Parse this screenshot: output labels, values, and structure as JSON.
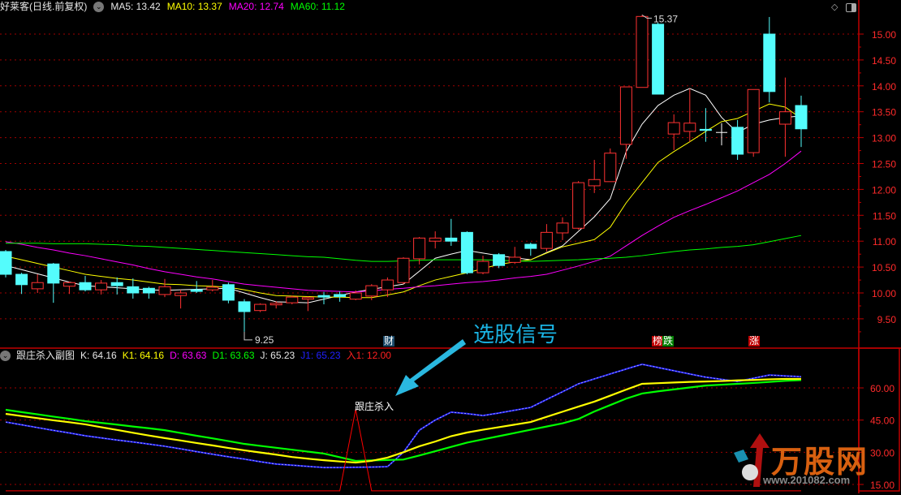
{
  "header": {
    "stock": "好莱客(日线.前复权)",
    "ma5": "MA5: 13.42",
    "ma10": "MA10: 13.37",
    "ma20": "MA20: 12.74",
    "ma60": "MA60: 11.12"
  },
  "indicator": {
    "name": "跟庄杀入副图",
    "k": "K: 64.16",
    "k1": "K1: 64.16",
    "d": "D: 63.63",
    "d1": "D1: 63.63",
    "j": "J: 65.23",
    "j1": "J1: 65.23",
    "in1": "入1: 12.00"
  },
  "annotations": {
    "signal": "选股信号",
    "kill": "跟庄杀入",
    "low": "9.25",
    "high": "15.37",
    "markers": [
      {
        "text": "财",
        "bg": "#1a4a6a"
      },
      {
        "text": "榜",
        "bg": "#c00000"
      },
      {
        "text": "跌",
        "bg": "#008000"
      },
      {
        "text": "涨",
        "bg": "#c00000"
      }
    ]
  },
  "logo": {
    "name": "万股网",
    "url": "www.201082.com"
  },
  "icons": {
    "top_right": [
      "diamond-icon",
      "panel-toggle-icon"
    ],
    "legend": "chevron-down-icon"
  },
  "colors": {
    "up": "#ff3232",
    "down": "#54fcfc",
    "ma5": "#ffffff",
    "ma10": "#ffff00",
    "ma20": "#ff00ff",
    "ma60": "#00ff00",
    "grid": "#a00000",
    "axis": "#c00000"
  },
  "chart_data": [
    {
      "type": "candlestick",
      "ylim": [
        9.5,
        15.0
      ],
      "yticks": [
        "15.00",
        "14.50",
        "14.00",
        "13.50",
        "13.00",
        "12.50",
        "12.00",
        "11.50",
        "11.00",
        "10.50",
        "10.00",
        "9.50"
      ],
      "grid": true,
      "candles": [
        [
          10.8,
          10.83,
          10.3,
          10.36
        ],
        [
          10.36,
          10.39,
          9.98,
          10.16
        ],
        [
          10.08,
          10.36,
          10.0,
          10.2
        ],
        [
          10.56,
          10.58,
          9.81,
          10.19
        ],
        [
          10.13,
          10.22,
          9.98,
          10.2
        ],
        [
          10.2,
          10.33,
          10.03,
          10.06
        ],
        [
          10.06,
          10.25,
          9.97,
          10.19
        ],
        [
          10.2,
          10.3,
          9.97,
          10.14
        ],
        [
          10.12,
          10.28,
          9.89,
          10.0
        ],
        [
          10.09,
          10.12,
          9.89,
          10.0
        ],
        [
          9.97,
          10.27,
          9.92,
          10.12
        ],
        [
          9.95,
          10.06,
          9.7,
          10.0
        ],
        [
          10.06,
          10.23,
          10.0,
          10.03
        ],
        [
          10.06,
          10.25,
          10.03,
          10.11
        ],
        [
          10.16,
          10.2,
          9.8,
          9.86
        ],
        [
          9.83,
          9.88,
          9.25,
          9.64
        ],
        [
          9.66,
          9.8,
          9.63,
          9.78
        ],
        [
          9.77,
          9.84,
          9.7,
          9.8
        ],
        [
          9.81,
          9.95,
          9.78,
          9.92
        ],
        [
          9.88,
          9.93,
          9.65,
          9.91
        ],
        [
          9.95,
          10.02,
          9.78,
          9.92
        ],
        [
          9.97,
          10.03,
          9.83,
          9.93
        ],
        [
          9.88,
          10.05,
          9.86,
          10.0
        ],
        [
          9.94,
          10.17,
          9.86,
          10.14
        ],
        [
          10.06,
          10.3,
          9.92,
          10.25
        ],
        [
          10.2,
          10.69,
          10.17,
          10.67
        ],
        [
          10.66,
          11.08,
          10.55,
          11.06
        ],
        [
          11.0,
          11.19,
          10.86,
          11.06
        ],
        [
          11.06,
          11.43,
          10.91,
          11.0
        ],
        [
          11.17,
          11.19,
          10.36,
          10.39
        ],
        [
          10.39,
          10.72,
          10.36,
          10.61
        ],
        [
          10.74,
          10.77,
          10.48,
          10.53
        ],
        [
          10.59,
          10.89,
          10.56,
          10.69
        ],
        [
          10.94,
          10.97,
          10.72,
          10.86
        ],
        [
          10.86,
          11.33,
          10.8,
          11.17
        ],
        [
          11.16,
          11.46,
          11.02,
          11.35
        ],
        [
          11.25,
          12.16,
          11.22,
          12.13
        ],
        [
          12.07,
          12.57,
          11.93,
          12.19
        ],
        [
          12.15,
          12.79,
          12.15,
          12.7
        ],
        [
          12.87,
          13.98,
          12.59,
          13.98
        ],
        [
          13.97,
          15.37,
          13.97,
          15.34
        ],
        [
          15.19,
          15.22,
          13.84,
          13.84
        ],
        [
          13.07,
          13.45,
          12.76,
          13.29
        ],
        [
          13.12,
          13.95,
          12.92,
          13.28
        ],
        [
          13.16,
          13.57,
          12.92,
          13.14
        ],
        [
          13.1,
          13.28,
          12.85,
          13.1
        ],
        [
          13.2,
          13.34,
          12.57,
          12.68
        ],
        [
          12.71,
          13.93,
          12.63,
          13.93
        ],
        [
          15.0,
          15.33,
          13.68,
          13.89
        ],
        [
          13.26,
          14.16,
          12.63,
          13.5
        ],
        [
          13.62,
          13.81,
          12.82,
          13.17
        ]
      ],
      "candle_fields": [
        "open",
        "high",
        "low",
        "close"
      ],
      "series": [
        {
          "name": "MA5",
          "color": "#ffffff",
          "values": [
            10.53,
            10.45,
            10.37,
            10.29,
            10.21,
            10.14,
            10.12,
            10.1,
            10.08,
            10.06,
            10.05,
            10.06,
            10.07,
            10.08,
            10.09,
            10.0,
            9.91,
            9.83,
            9.82,
            9.81,
            9.88,
            9.95,
            10.02,
            10.07,
            10.12,
            10.17,
            10.42,
            10.67,
            10.75,
            10.82,
            10.77,
            10.72,
            10.68,
            10.64,
            10.78,
            10.91,
            11.19,
            11.47,
            11.82,
            12.73,
            13.26,
            13.62,
            13.82,
            13.95,
            13.82,
            13.39,
            13.1,
            13.26,
            13.34,
            13.39,
            13.42
          ]
        },
        {
          "name": "MA10",
          "color": "#ffff00",
          "values": [
            10.71,
            10.64,
            10.57,
            10.5,
            10.43,
            10.36,
            10.32,
            10.28,
            10.25,
            10.21,
            10.17,
            10.16,
            10.14,
            10.13,
            10.11,
            10.06,
            10.0,
            9.95,
            9.94,
            9.93,
            9.92,
            9.92,
            9.91,
            9.91,
            9.96,
            10.02,
            10.14,
            10.25,
            10.32,
            10.39,
            10.47,
            10.55,
            10.6,
            10.64,
            10.77,
            10.89,
            10.96,
            11.03,
            11.27,
            11.74,
            12.13,
            12.52,
            12.73,
            12.92,
            13.12,
            13.31,
            13.37,
            13.51,
            13.65,
            13.59,
            13.37
          ]
        },
        {
          "name": "MA20",
          "color": "#ff00ff",
          "values": [
            10.99,
            10.94,
            10.88,
            10.83,
            10.77,
            10.72,
            10.66,
            10.6,
            10.54,
            10.47,
            10.41,
            10.36,
            10.31,
            10.27,
            10.22,
            10.17,
            10.14,
            10.11,
            10.08,
            10.05,
            10.04,
            10.03,
            10.02,
            10.04,
            10.07,
            10.09,
            10.12,
            10.14,
            10.17,
            10.2,
            10.22,
            10.25,
            10.29,
            10.32,
            10.36,
            10.44,
            10.52,
            10.61,
            10.71,
            10.91,
            11.11,
            11.29,
            11.46,
            11.59,
            11.71,
            11.84,
            11.97,
            12.13,
            12.29,
            12.5,
            12.74
          ]
        },
        {
          "name": "MA60",
          "color": "#00ff00",
          "values": [
            10.96,
            10.96,
            10.96,
            10.95,
            10.95,
            10.95,
            10.94,
            10.93,
            10.91,
            10.9,
            10.88,
            10.86,
            10.84,
            10.82,
            10.8,
            10.78,
            10.76,
            10.74,
            10.72,
            10.7,
            10.69,
            10.66,
            10.63,
            10.61,
            10.61,
            10.62,
            10.63,
            10.64,
            10.64,
            10.64,
            10.64,
            10.63,
            10.62,
            10.61,
            10.62,
            10.63,
            10.64,
            10.66,
            10.67,
            10.69,
            10.72,
            10.76,
            10.8,
            10.83,
            10.85,
            10.88,
            10.9,
            10.93,
            10.99,
            11.05,
            11.11
          ]
        }
      ]
    },
    {
      "type": "line",
      "ylim": [
        10,
        75
      ],
      "yticks": [
        "60.00",
        "45.00",
        "30.00",
        "15.00"
      ],
      "grid": true,
      "series": [
        {
          "name": "J",
          "color": "#2020ff",
          "values": [
            44.1,
            42.8,
            41.5,
            40.2,
            39,
            37.7,
            36.7,
            35.7,
            34.8,
            33.8,
            32.8,
            31.6,
            30.3,
            29.1,
            27.9,
            26.8,
            25.6,
            24.5,
            24,
            23.4,
            22.9,
            22.9,
            23,
            23.1,
            23.3,
            30,
            40.3,
            45,
            48.7,
            48,
            47.1,
            48.3,
            49.6,
            50.9,
            54.6,
            58.2,
            61.9,
            64.2,
            66.5,
            68.8,
            71,
            69.5,
            68,
            66.5,
            65,
            64,
            63,
            64.5,
            66,
            65.6,
            65.23
          ]
        },
        {
          "name": "D1",
          "color": "#00ff00",
          "values": [
            49.8,
            48.7,
            47.7,
            46.6,
            45.6,
            44.5,
            43.7,
            42.9,
            42,
            41.2,
            40.3,
            39,
            37.7,
            36.5,
            35.2,
            33.9,
            33,
            32.1,
            31.2,
            30.3,
            29.4,
            27.7,
            26,
            26.2,
            26.4,
            26.6,
            28.5,
            30.5,
            32.5,
            34.5,
            36,
            37.5,
            39,
            40.5,
            42,
            43.5,
            45.5,
            49,
            52,
            55,
            57.4,
            58.4,
            59.3,
            60.2,
            61.1,
            61.5,
            61.9,
            62.3,
            62.8,
            63.3,
            63.63
          ]
        },
        {
          "name": "K",
          "color": "#ffff00",
          "values": [
            47.9,
            46.9,
            45.9,
            44.9,
            44,
            43,
            41.7,
            40.4,
            39.1,
            37.8,
            36.6,
            35.5,
            34.3,
            33.2,
            32,
            30.9,
            29.9,
            28.9,
            27.8,
            27,
            26.3,
            25.7,
            25.2,
            26,
            27.5,
            30,
            32.8,
            35,
            37.5,
            39.2,
            40.5,
            41.7,
            42.9,
            44.1,
            46.5,
            48.9,
            51.3,
            53.6,
            56.4,
            59.2,
            61.9,
            62.2,
            62.5,
            62.8,
            63,
            63.2,
            63.5,
            63.7,
            64,
            64.2,
            64.16
          ]
        },
        {
          "name": "入1",
          "color": "#ff0000",
          "values": [
            12,
            12,
            12,
            12,
            12,
            12,
            12,
            12,
            12,
            12,
            12,
            12,
            12,
            12,
            12,
            12,
            12,
            12,
            12,
            12,
            12,
            12,
            50,
            12,
            12,
            12,
            12,
            12,
            12,
            12,
            12,
            12,
            12,
            12,
            12,
            12,
            12,
            12,
            12,
            12,
            12,
            12,
            12,
            12,
            12,
            12,
            12,
            12,
            12,
            12,
            12
          ]
        }
      ]
    }
  ]
}
